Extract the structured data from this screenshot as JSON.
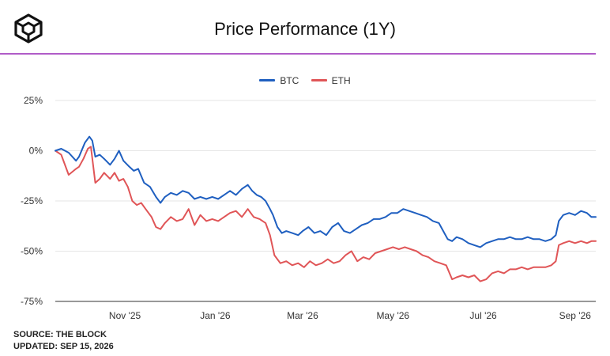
{
  "header": {
    "title": "Price Performance (1Y)",
    "logo_icon": "the-block-cube-logo-icon",
    "rule_color": "#b05cc8"
  },
  "chart_data": {
    "type": "line",
    "title": "Price Performance (1Y)",
    "xlabel": "",
    "ylabel": "",
    "ylim": [
      -75,
      25
    ],
    "yticks": [
      "25%",
      "0%",
      "-25%",
      "-50%",
      "-75%"
    ],
    "ytick_values": [
      25,
      0,
      -25,
      -50,
      -75
    ],
    "xlim": [
      "2025-09-15",
      "2026-09-15"
    ],
    "xticks": [
      "Nov '25",
      "Jan '26",
      "Mar '26",
      "May '26",
      "Jul '26",
      "Sep '26"
    ],
    "xtick_dates": [
      "2025-11-01",
      "2026-01-01",
      "2026-03-01",
      "2026-05-01",
      "2026-07-01",
      "2026-09-01"
    ],
    "grid": true,
    "legend": "top-center",
    "series": [
      {
        "name": "BTC",
        "color": "#1f5fc0",
        "points": [
          [
            "2025-09-15",
            0
          ],
          [
            "2025-09-19",
            1
          ],
          [
            "2025-09-24",
            -1
          ],
          [
            "2025-09-29",
            -5
          ],
          [
            "2025-10-01",
            -3
          ],
          [
            "2025-10-05",
            4
          ],
          [
            "2025-10-08",
            7
          ],
          [
            "2025-10-10",
            5
          ],
          [
            "2025-10-12",
            -3
          ],
          [
            "2025-10-15",
            -2
          ],
          [
            "2025-10-18",
            -4
          ],
          [
            "2025-10-22",
            -7
          ],
          [
            "2025-10-25",
            -4
          ],
          [
            "2025-10-28",
            0
          ],
          [
            "2025-10-31",
            -5
          ],
          [
            "2025-11-04",
            -8
          ],
          [
            "2025-11-07",
            -10
          ],
          [
            "2025-11-10",
            -9
          ],
          [
            "2025-11-14",
            -16
          ],
          [
            "2025-11-18",
            -18
          ],
          [
            "2025-11-22",
            -23
          ],
          [
            "2025-11-25",
            -26
          ],
          [
            "2025-11-28",
            -23
          ],
          [
            "2025-12-02",
            -21
          ],
          [
            "2025-12-06",
            -22
          ],
          [
            "2025-12-10",
            -20
          ],
          [
            "2025-12-14",
            -21
          ],
          [
            "2025-12-18",
            -24
          ],
          [
            "2025-12-22",
            -23
          ],
          [
            "2025-12-26",
            -24
          ],
          [
            "2025-12-30",
            -23
          ],
          [
            "2026-01-03",
            -24
          ],
          [
            "2026-01-07",
            -22
          ],
          [
            "2026-01-11",
            -20
          ],
          [
            "2026-01-15",
            -22
          ],
          [
            "2026-01-19",
            -19
          ],
          [
            "2026-01-23",
            -17
          ],
          [
            "2026-01-26",
            -20
          ],
          [
            "2026-01-29",
            -22
          ],
          [
            "2026-02-01",
            -23
          ],
          [
            "2026-02-04",
            -25
          ],
          [
            "2026-02-07",
            -29
          ],
          [
            "2026-02-09",
            -32
          ],
          [
            "2026-02-12",
            -38
          ],
          [
            "2026-02-15",
            -41
          ],
          [
            "2026-02-18",
            -40
          ],
          [
            "2026-02-22",
            -41
          ],
          [
            "2026-02-26",
            -42
          ],
          [
            "2026-03-01",
            -40
          ],
          [
            "2026-03-05",
            -38
          ],
          [
            "2026-03-09",
            -41
          ],
          [
            "2026-03-13",
            -40
          ],
          [
            "2026-03-17",
            -42
          ],
          [
            "2026-03-21",
            -38
          ],
          [
            "2026-03-25",
            -36
          ],
          [
            "2026-03-29",
            -40
          ],
          [
            "2026-04-02",
            -41
          ],
          [
            "2026-04-06",
            -39
          ],
          [
            "2026-04-10",
            -37
          ],
          [
            "2026-04-14",
            -36
          ],
          [
            "2026-04-18",
            -34
          ],
          [
            "2026-04-22",
            -34
          ],
          [
            "2026-04-26",
            -33
          ],
          [
            "2026-04-30",
            -31
          ],
          [
            "2026-05-04",
            -31
          ],
          [
            "2026-05-08",
            -29
          ],
          [
            "2026-05-12",
            -30
          ],
          [
            "2026-05-16",
            -31
          ],
          [
            "2026-05-20",
            -32
          ],
          [
            "2026-05-24",
            -33
          ],
          [
            "2026-05-28",
            -35
          ],
          [
            "2026-06-01",
            -36
          ],
          [
            "2026-06-04",
            -40
          ],
          [
            "2026-06-07",
            -44
          ],
          [
            "2026-06-10",
            -45
          ],
          [
            "2026-06-13",
            -43
          ],
          [
            "2026-06-17",
            -44
          ],
          [
            "2026-06-21",
            -46
          ],
          [
            "2026-06-25",
            -47
          ],
          [
            "2026-06-29",
            -48
          ],
          [
            "2026-07-03",
            -46
          ],
          [
            "2026-07-07",
            -45
          ],
          [
            "2026-07-11",
            -44
          ],
          [
            "2026-07-15",
            -44
          ],
          [
            "2026-07-19",
            -43
          ],
          [
            "2026-07-23",
            -44
          ],
          [
            "2026-07-27",
            -44
          ],
          [
            "2026-07-31",
            -43
          ],
          [
            "2026-08-04",
            -44
          ],
          [
            "2026-08-08",
            -44
          ],
          [
            "2026-08-12",
            -45
          ],
          [
            "2026-08-16",
            -44
          ],
          [
            "2026-08-19",
            -42
          ],
          [
            "2026-08-21",
            -35
          ],
          [
            "2026-08-24",
            -32
          ],
          [
            "2026-08-28",
            -31
          ],
          [
            "2026-09-01",
            -32
          ],
          [
            "2026-09-05",
            -30
          ],
          [
            "2026-09-09",
            -31
          ],
          [
            "2026-09-12",
            -33
          ],
          [
            "2026-09-15",
            -33
          ]
        ]
      },
      {
        "name": "ETH",
        "color": "#e05557",
        "points": [
          [
            "2025-09-15",
            0
          ],
          [
            "2025-09-19",
            -2
          ],
          [
            "2025-09-24",
            -12
          ],
          [
            "2025-09-29",
            -9
          ],
          [
            "2025-10-01",
            -8
          ],
          [
            "2025-10-04",
            -4
          ],
          [
            "2025-10-07",
            1
          ],
          [
            "2025-10-09",
            2
          ],
          [
            "2025-10-12",
            -16
          ],
          [
            "2025-10-15",
            -14
          ],
          [
            "2025-10-18",
            -11
          ],
          [
            "2025-10-22",
            -14
          ],
          [
            "2025-10-25",
            -11
          ],
          [
            "2025-10-28",
            -15
          ],
          [
            "2025-10-31",
            -14
          ],
          [
            "2025-11-03",
            -18
          ],
          [
            "2025-11-06",
            -25
          ],
          [
            "2025-11-09",
            -27
          ],
          [
            "2025-11-12",
            -26
          ],
          [
            "2025-11-15",
            -29
          ],
          [
            "2025-11-19",
            -33
          ],
          [
            "2025-11-22",
            -38
          ],
          [
            "2025-11-25",
            -39
          ],
          [
            "2025-11-28",
            -36
          ],
          [
            "2025-12-02",
            -33
          ],
          [
            "2025-12-06",
            -35
          ],
          [
            "2025-12-10",
            -34
          ],
          [
            "2025-12-14",
            -29
          ],
          [
            "2025-12-18",
            -37
          ],
          [
            "2025-12-22",
            -32
          ],
          [
            "2025-12-26",
            -35
          ],
          [
            "2025-12-30",
            -34
          ],
          [
            "2026-01-03",
            -35
          ],
          [
            "2026-01-07",
            -33
          ],
          [
            "2026-01-11",
            -31
          ],
          [
            "2026-01-15",
            -30
          ],
          [
            "2026-01-19",
            -33
          ],
          [
            "2026-01-23",
            -29
          ],
          [
            "2026-01-27",
            -33
          ],
          [
            "2026-01-31",
            -34
          ],
          [
            "2026-02-04",
            -36
          ],
          [
            "2026-02-07",
            -42
          ],
          [
            "2026-02-10",
            -52
          ],
          [
            "2026-02-14",
            -56
          ],
          [
            "2026-02-18",
            -55
          ],
          [
            "2026-02-22",
            -57
          ],
          [
            "2026-02-26",
            -56
          ],
          [
            "2026-03-02",
            -58
          ],
          [
            "2026-03-06",
            -55
          ],
          [
            "2026-03-10",
            -57
          ],
          [
            "2026-03-14",
            -56
          ],
          [
            "2026-03-18",
            -54
          ],
          [
            "2026-03-22",
            -56
          ],
          [
            "2026-03-26",
            -55
          ],
          [
            "2026-03-30",
            -52
          ],
          [
            "2026-04-03",
            -50
          ],
          [
            "2026-04-07",
            -55
          ],
          [
            "2026-04-11",
            -53
          ],
          [
            "2026-04-15",
            -54
          ],
          [
            "2026-04-19",
            -51
          ],
          [
            "2026-04-23",
            -50
          ],
          [
            "2026-04-27",
            -49
          ],
          [
            "2026-05-01",
            -48
          ],
          [
            "2026-05-05",
            -49
          ],
          [
            "2026-05-09",
            -48
          ],
          [
            "2026-05-13",
            -49
          ],
          [
            "2026-05-17",
            -50
          ],
          [
            "2026-05-21",
            -52
          ],
          [
            "2026-05-25",
            -53
          ],
          [
            "2026-05-29",
            -55
          ],
          [
            "2026-06-02",
            -56
          ],
          [
            "2026-06-06",
            -57
          ],
          [
            "2026-06-10",
            -64
          ],
          [
            "2026-06-13",
            -63
          ],
          [
            "2026-06-17",
            -62
          ],
          [
            "2026-06-21",
            -63
          ],
          [
            "2026-06-25",
            -62
          ],
          [
            "2026-06-29",
            -65
          ],
          [
            "2026-07-03",
            -64
          ],
          [
            "2026-07-07",
            -61
          ],
          [
            "2026-07-11",
            -60
          ],
          [
            "2026-07-15",
            -61
          ],
          [
            "2026-07-19",
            -59
          ],
          [
            "2026-07-23",
            -59
          ],
          [
            "2026-07-27",
            -58
          ],
          [
            "2026-07-31",
            -59
          ],
          [
            "2026-08-04",
            -58
          ],
          [
            "2026-08-08",
            -58
          ],
          [
            "2026-08-12",
            -58
          ],
          [
            "2026-08-16",
            -57
          ],
          [
            "2026-08-19",
            -55
          ],
          [
            "2026-08-21",
            -47
          ],
          [
            "2026-08-24",
            -46
          ],
          [
            "2026-08-28",
            -45
          ],
          [
            "2026-09-01",
            -46
          ],
          [
            "2026-09-05",
            -45
          ],
          [
            "2026-09-09",
            -46
          ],
          [
            "2026-09-12",
            -45
          ],
          [
            "2026-09-15",
            -45
          ]
        ]
      }
    ]
  },
  "footer": {
    "source": "SOURCE: THE BLOCK",
    "updated": "UPDATED: SEP 15, 2026"
  }
}
